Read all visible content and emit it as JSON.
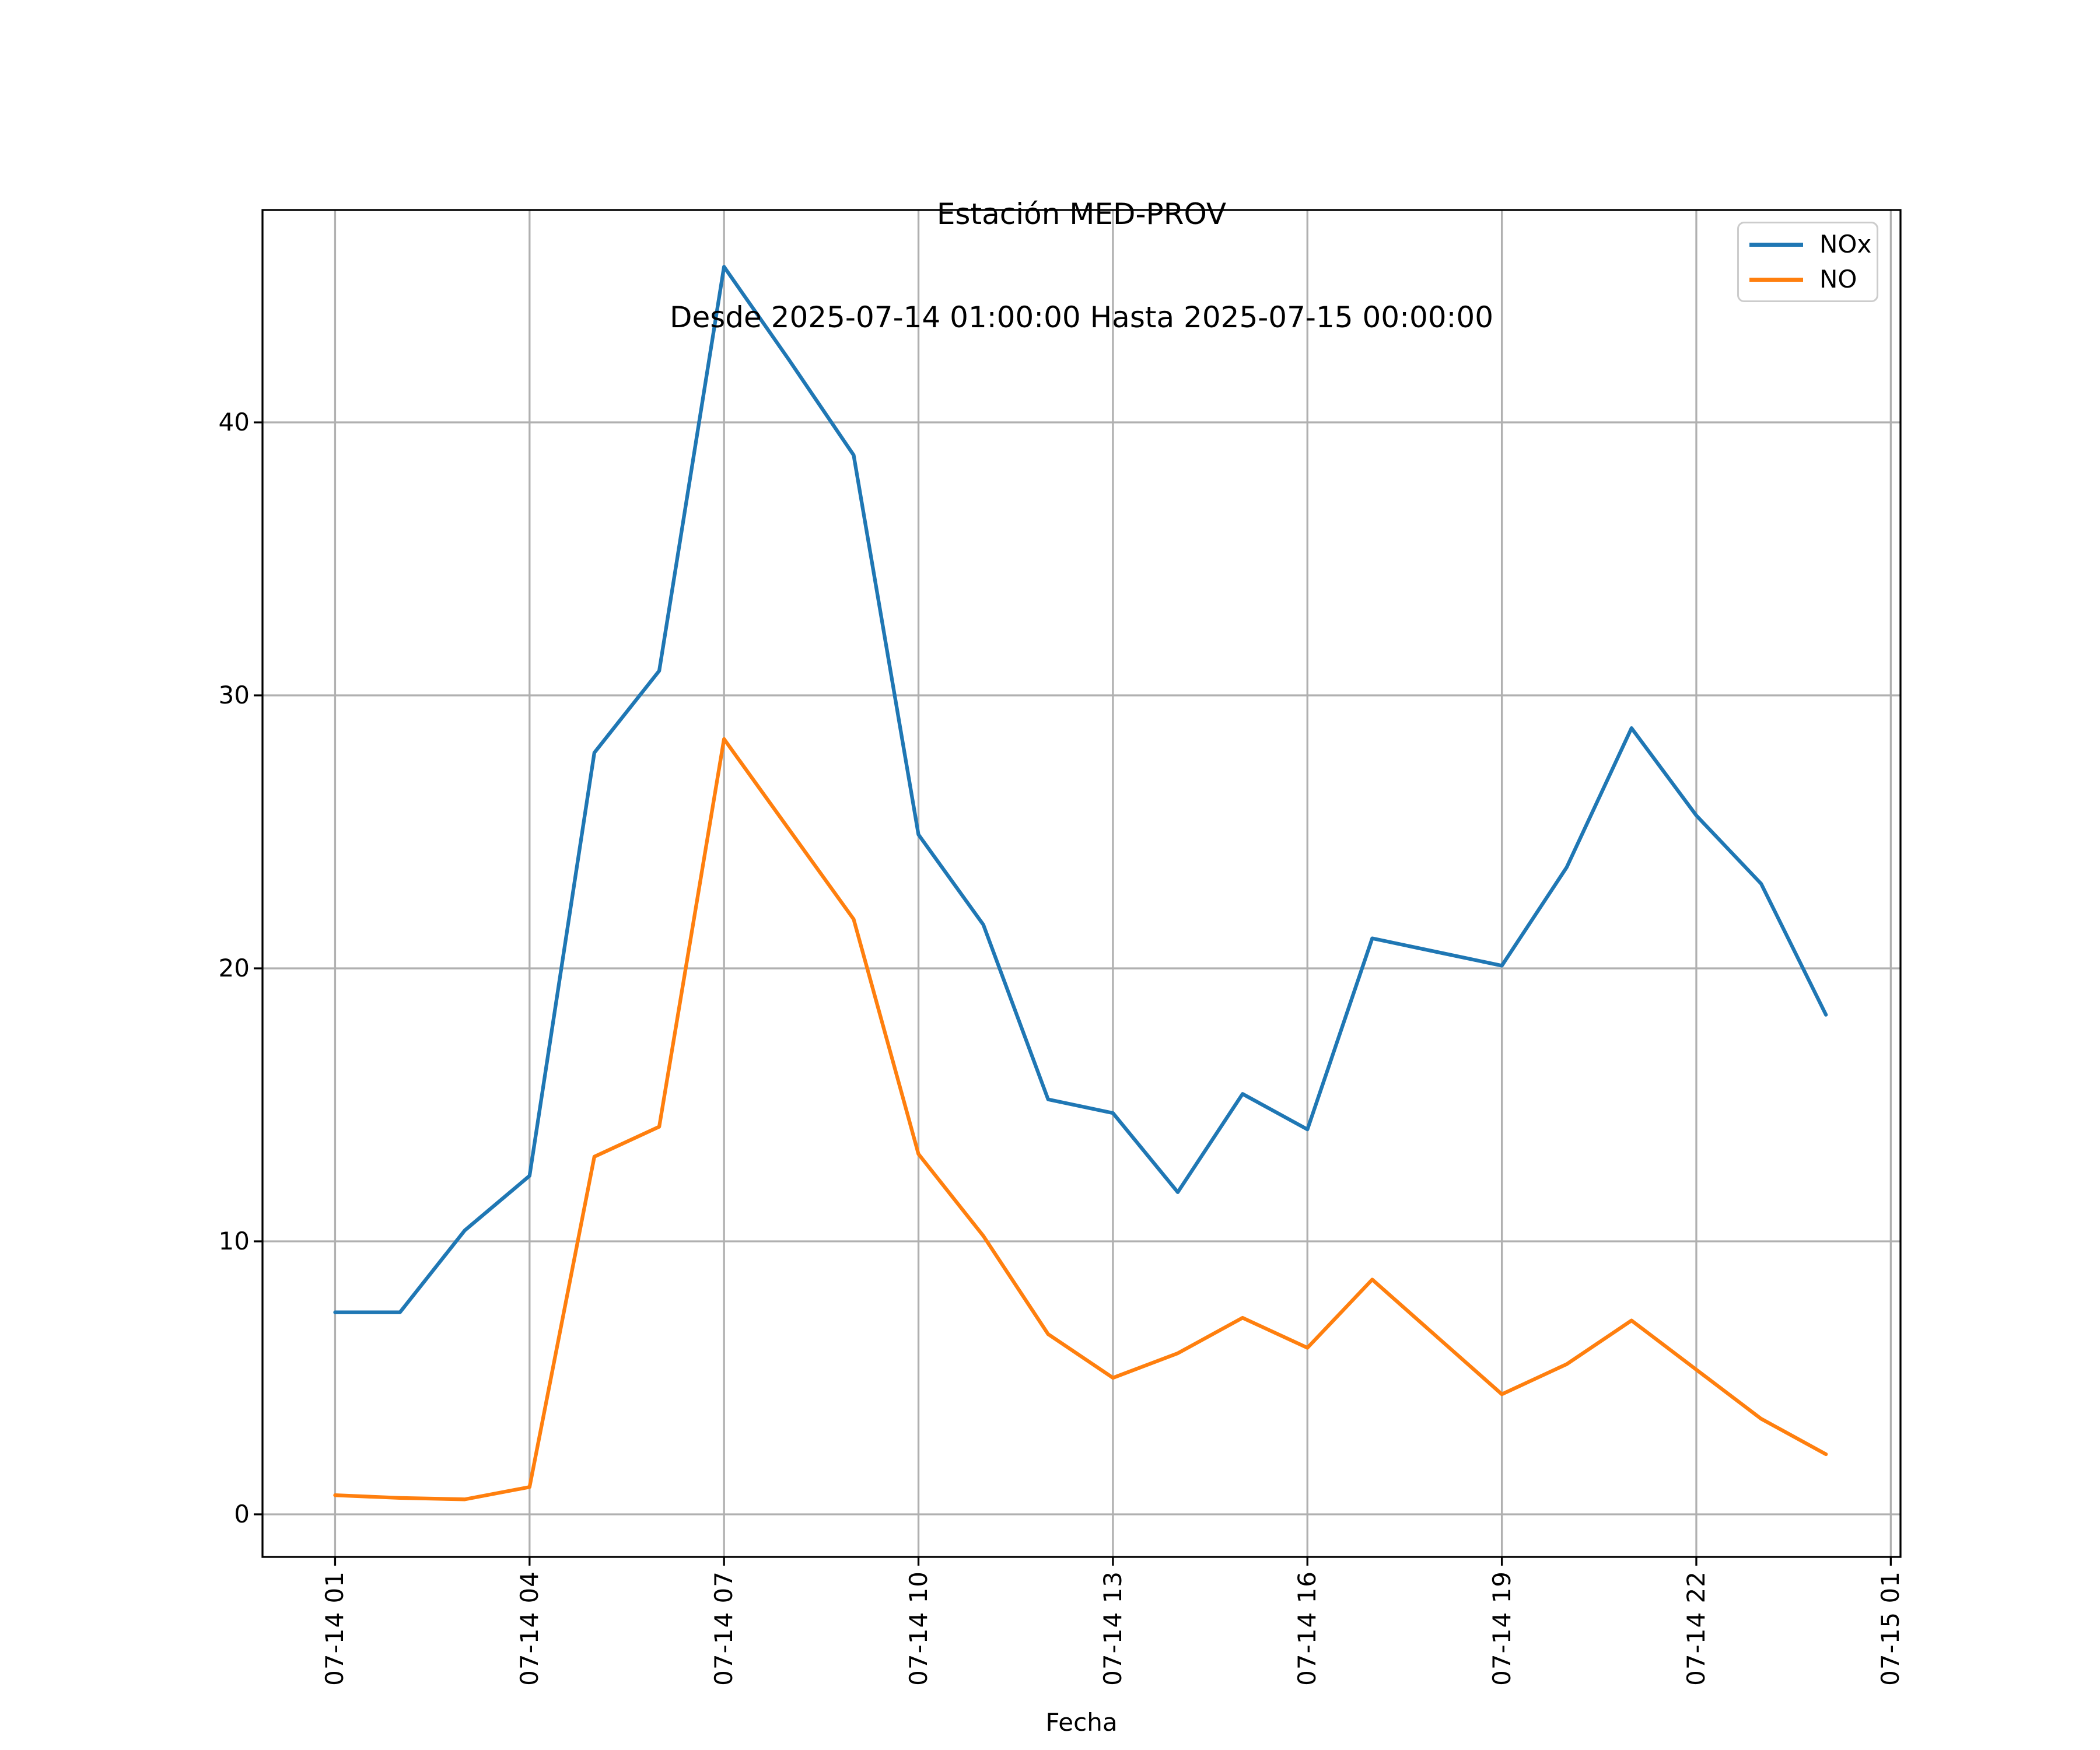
{
  "title": "Estación MED-PROV",
  "subtitle": "Desde 2025-07-14 01:00:00 Hasta 2025-07-15 00:00:00",
  "xlabel": "Fecha",
  "colors": {
    "nox_line": "#1f77b4",
    "no_line": "#ff7f0e",
    "grid": "#b0b0b0",
    "spine": "#000000",
    "background": "#ffffff",
    "legend_border": "#cccccc"
  },
  "chart_data": {
    "type": "line",
    "title": "Estación MED-PROV",
    "subtitle": "Desde 2025-07-14 01:00:00 Hasta 2025-07-15 00:00:00",
    "xlabel": "Fecha",
    "ylabel": "",
    "grid": true,
    "legend_position": "upper right",
    "x_hours": [
      1,
      2,
      3,
      4,
      5,
      6,
      7,
      8,
      9,
      10,
      11,
      12,
      13,
      14,
      15,
      16,
      17,
      18,
      19,
      20,
      21,
      22,
      23,
      24
    ],
    "series": [
      {
        "name": "NOx",
        "color": "#1f77b4",
        "values": [
          7.4,
          7.4,
          10.4,
          12.4,
          27.9,
          30.9,
          45.7,
          42.3,
          38.8,
          24.9,
          21.6,
          15.2,
          14.7,
          11.8,
          15.4,
          14.1,
          21.1,
          20.6,
          20.1,
          23.7,
          28.8,
          25.6,
          23.1,
          18.3
        ]
      },
      {
        "name": "NO",
        "color": "#ff7f0e",
        "values": [
          0.7,
          0.6,
          0.55,
          1.0,
          13.1,
          14.2,
          28.4,
          25.1,
          21.8,
          13.2,
          10.2,
          6.6,
          5.0,
          5.9,
          7.2,
          6.1,
          8.6,
          6.5,
          4.4,
          5.5,
          7.1,
          5.3,
          3.5,
          2.2
        ]
      }
    ],
    "xticks": {
      "hours": [
        1,
        4,
        7,
        10,
        13,
        16,
        19,
        22,
        25
      ],
      "labels": [
        "07-14 01",
        "07-14 04",
        "07-14 07",
        "07-14 10",
        "07-14 13",
        "07-14 16",
        "07-14 19",
        "07-14 22",
        "07-15 01"
      ]
    },
    "yticks": [
      0,
      10,
      20,
      30,
      40
    ],
    "ylim": [
      -1.56,
      47.78
    ],
    "xlim_hours": [
      -0.12,
      25.15
    ]
  }
}
